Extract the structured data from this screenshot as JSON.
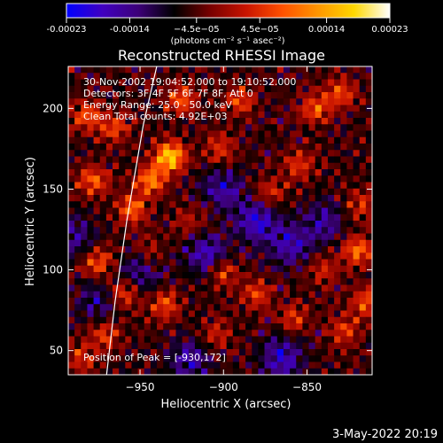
{
  "chart_data": {
    "type": "heatmap",
    "title": "Reconstructed RHESSI Image",
    "xlabel": "Heliocentric X (arcsec)",
    "ylabel": "Heliocentric Y (arcsec)",
    "xlim": [
      -993,
      -811
    ],
    "ylim": [
      35,
      226
    ],
    "x_ticks": [
      -950,
      -900,
      -850
    ],
    "y_ticks": [
      50,
      100,
      150,
      200
    ],
    "colorbar": {
      "range": [
        -0.00023,
        0.00023
      ],
      "tick_values": [
        -0.00023,
        -0.00014,
        -4.5e-05,
        4.5e-05,
        0.00014,
        0.00023
      ],
      "tick_labels": [
        "-0.00023",
        "-0.00014",
        "−4.5e−05",
        "4.5e−05",
        "0.00014",
        "0.00023"
      ],
      "unit_label": "(photons cm⁻² s⁻¹ asec⁻²)",
      "colors": [
        "#0000ff",
        "#4000c0",
        "#3c0078",
        "#000000",
        "#780000",
        "#c81400",
        "#ff5000",
        "#ff9600",
        "#ffd700",
        "#ffffff"
      ]
    },
    "annotations": [
      "30-Nov-2002 19:04:52.000 to 19:10:52.000",
      "Detectors: 3F 4F 5F 6F 7F 8F, Att 0",
      "Energy Range: 25.0 - 50.0 keV",
      "Clean     Total counts: 4.92E+03"
    ],
    "peak_label": "Position of Peak = [-930,172]",
    "peak": [
      -930,
      172
    ],
    "limb_curve": [
      [
        -970,
        35
      ],
      [
        -965,
        80
      ],
      [
        -958,
        130
      ],
      [
        -948,
        190
      ],
      [
        -940,
        226
      ]
    ],
    "bright_sources": [
      {
        "x": -932,
        "y": 170,
        "v": 0.00023
      },
      {
        "x": -944,
        "y": 155,
        "v": 0.00016
      },
      {
        "x": -925,
        "y": 205,
        "v": 0.00013
      },
      {
        "x": -982,
        "y": 195,
        "v": 0.00012
      },
      {
        "x": -965,
        "y": 188,
        "v": 0.00011
      },
      {
        "x": -955,
        "y": 137,
        "v": 0.00014
      },
      {
        "x": -978,
        "y": 155,
        "v": 0.00013
      },
      {
        "x": -975,
        "y": 105,
        "v": 0.00013
      },
      {
        "x": -960,
        "y": 85,
        "v": 0.00012
      },
      {
        "x": -972,
        "y": 60,
        "v": 0.00011
      },
      {
        "x": -935,
        "y": 78,
        "v": 0.00012
      },
      {
        "x": -902,
        "y": 175,
        "v": 0.0001
      },
      {
        "x": -890,
        "y": 205,
        "v": 0.00011
      },
      {
        "x": -872,
        "y": 148,
        "v": 9e-05
      },
      {
        "x": -845,
        "y": 200,
        "v": 0.00012
      },
      {
        "x": -830,
        "y": 210,
        "v": 0.00011
      },
      {
        "x": -855,
        "y": 165,
        "v": 0.0001
      },
      {
        "x": -818,
        "y": 140,
        "v": 9e-05
      },
      {
        "x": -900,
        "y": 98,
        "v": 0.00011
      },
      {
        "x": -880,
        "y": 85,
        "v": 0.0001
      },
      {
        "x": -905,
        "y": 60,
        "v": 9e-05
      },
      {
        "x": -840,
        "y": 100,
        "v": 8e-05
      },
      {
        "x": -820,
        "y": 112,
        "v": 0.00015
      },
      {
        "x": -815,
        "y": 80,
        "v": 0.00012
      },
      {
        "x": -828,
        "y": 62,
        "v": 0.0001
      },
      {
        "x": -858,
        "y": 70,
        "v": 9e-05
      },
      {
        "x": -945,
        "y": 110,
        "v": 8e-05
      },
      {
        "x": -920,
        "y": 130,
        "v": 7e-05
      },
      {
        "x": -985,
        "y": 45,
        "v": 9e-05
      }
    ],
    "dark_sources": [
      {
        "x": -910,
        "y": 110,
        "v": -0.00012
      },
      {
        "x": -880,
        "y": 130,
        "v": -0.00013
      },
      {
        "x": -950,
        "y": 100,
        "v": -0.0001
      },
      {
        "x": -865,
        "y": 45,
        "v": -0.00012
      },
      {
        "x": -900,
        "y": 150,
        "v": -0.0001
      },
      {
        "x": -860,
        "y": 115,
        "v": -0.00011
      },
      {
        "x": -990,
        "y": 120,
        "v": -9e-05
      },
      {
        "x": -920,
        "y": 45,
        "v": -0.0001
      },
      {
        "x": -840,
        "y": 130,
        "v": -9e-05
      },
      {
        "x": -975,
        "y": 80,
        "v": -8e-05
      }
    ]
  },
  "footer": {
    "date_stamp": "3-May-2022 20:19"
  }
}
